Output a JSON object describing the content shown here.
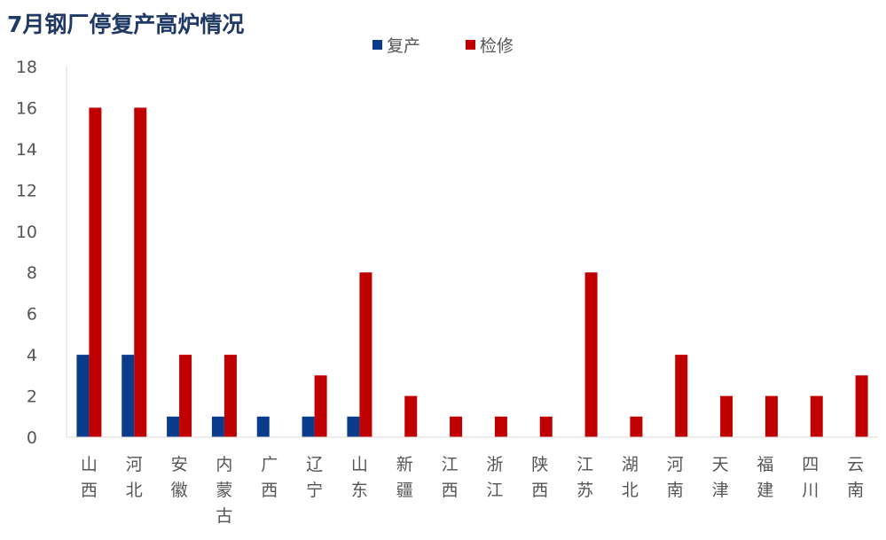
{
  "chart_data": {
    "type": "bar",
    "title": "7月钢厂停复产高炉情况",
    "xlabel": "",
    "ylabel": "",
    "ylim": [
      0,
      18
    ],
    "yticks": [
      0,
      2,
      4,
      6,
      8,
      10,
      12,
      14,
      16,
      18
    ],
    "grid": false,
    "legend_position": "top",
    "categories": [
      "山西",
      "河北",
      "安徽",
      "内蒙古",
      "广西",
      "辽宁",
      "山东",
      "新疆",
      "江西",
      "浙江",
      "陕西",
      "江苏",
      "湖北",
      "河南",
      "天津",
      "福建",
      "四川",
      "云南"
    ],
    "series": [
      {
        "name": "复产",
        "color": "#0b3c8c",
        "values": [
          4,
          4,
          1,
          1,
          1,
          1,
          1,
          0,
          0,
          0,
          0,
          0,
          0,
          0,
          0,
          0,
          0,
          0
        ]
      },
      {
        "name": "检修",
        "color": "#c00000",
        "values": [
          16,
          16,
          4,
          4,
          0,
          3,
          8,
          2,
          1,
          1,
          1,
          8,
          1,
          4,
          2,
          2,
          2,
          3
        ]
      }
    ]
  }
}
